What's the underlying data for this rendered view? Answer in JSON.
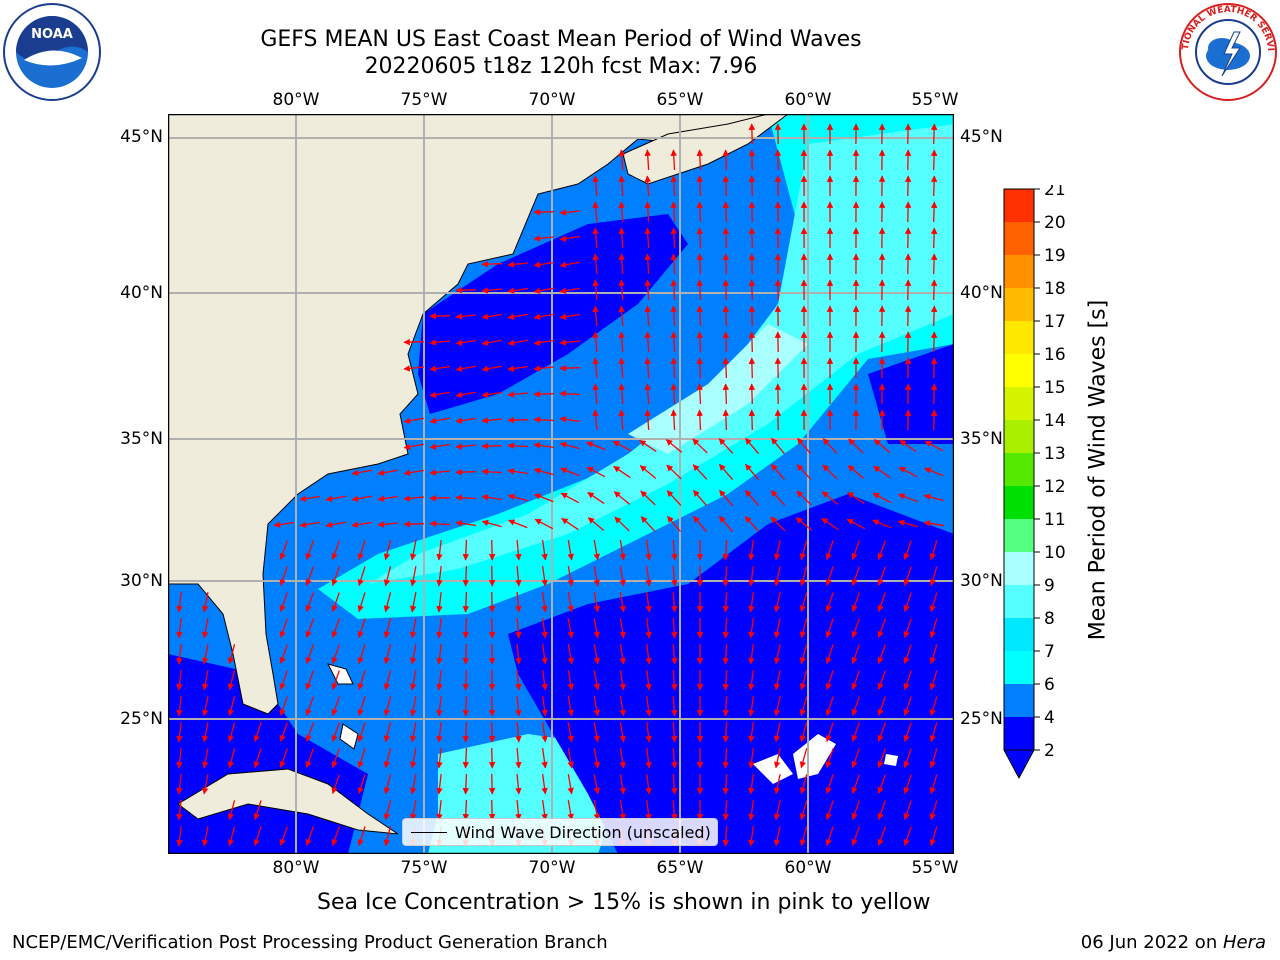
{
  "header": {
    "title_line1": "GEFS MEAN US East Coast Mean Period of Wind Waves",
    "title_line2": "20220605 t18z 120h fcst   Max: 7.96"
  },
  "logos": {
    "noaa": {
      "icon": "noaa-logo-icon",
      "text": "NOAA"
    },
    "nws": {
      "icon": "nws-logo-icon",
      "text": "NATIONAL WEATHER SERVICE"
    }
  },
  "map": {
    "lon_ticks": [
      "80°W",
      "75°W",
      "70°W",
      "65°W",
      "60°W",
      "55°W"
    ],
    "lat_ticks": [
      "45°N",
      "40°N",
      "35°N",
      "30°N",
      "25°N"
    ],
    "land_color": "#efecdc",
    "ocean_color": "#ffffff",
    "arrow_color": "#ff0000",
    "grid_color": "#b0b0b0"
  },
  "legend": {
    "label": "Wind Wave Direction (unscaled)"
  },
  "colorbar": {
    "label": "Mean Period of Wind Waves [s]",
    "ticks": [
      "2",
      "4",
      "6",
      "7",
      "8",
      "9",
      "10",
      "11",
      "12",
      "13",
      "14",
      "15",
      "16",
      "17",
      "18",
      "19",
      "20",
      "21"
    ],
    "colors": [
      "#0000ff",
      "#0080ff",
      "#00ffff",
      "#00e8ff",
      "#55ffff",
      "#aaffff",
      "#55ff80",
      "#00e000",
      "#55e800",
      "#aaee00",
      "#d4f400",
      "#ffff00",
      "#ffe800",
      "#ffbb00",
      "#ff9000",
      "#ff6000",
      "#ff3000",
      "#ff0000"
    ]
  },
  "note": "Sea Ice Concentration > 15% is shown in pink to yellow",
  "footer": {
    "left": "NCEP/EMC/Verification Post Processing Product Generation Branch",
    "right_prefix": "06 Jun 2022 on ",
    "right_host": "Hera"
  }
}
